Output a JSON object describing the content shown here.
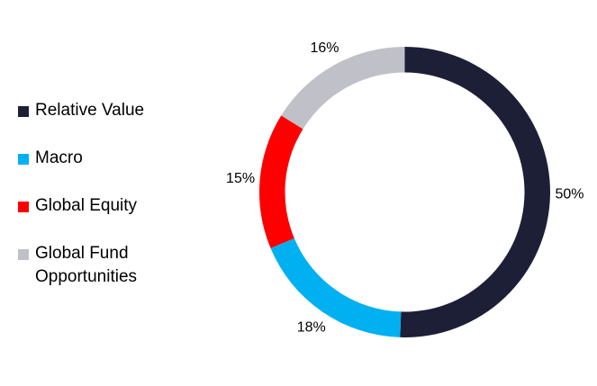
{
  "chart_data": {
    "type": "donut",
    "categories": [
      "Relative Value",
      "Macro",
      "Global Equity",
      "Global Fund Opportunities"
    ],
    "values": [
      50,
      18,
      15,
      16
    ],
    "value_labels": [
      "50%",
      "18%",
      "15%",
      "16%"
    ],
    "colors": [
      "#1c1f36",
      "#00b0f0",
      "#ff0000",
      "#c0c0c8"
    ],
    "legend": "left"
  }
}
